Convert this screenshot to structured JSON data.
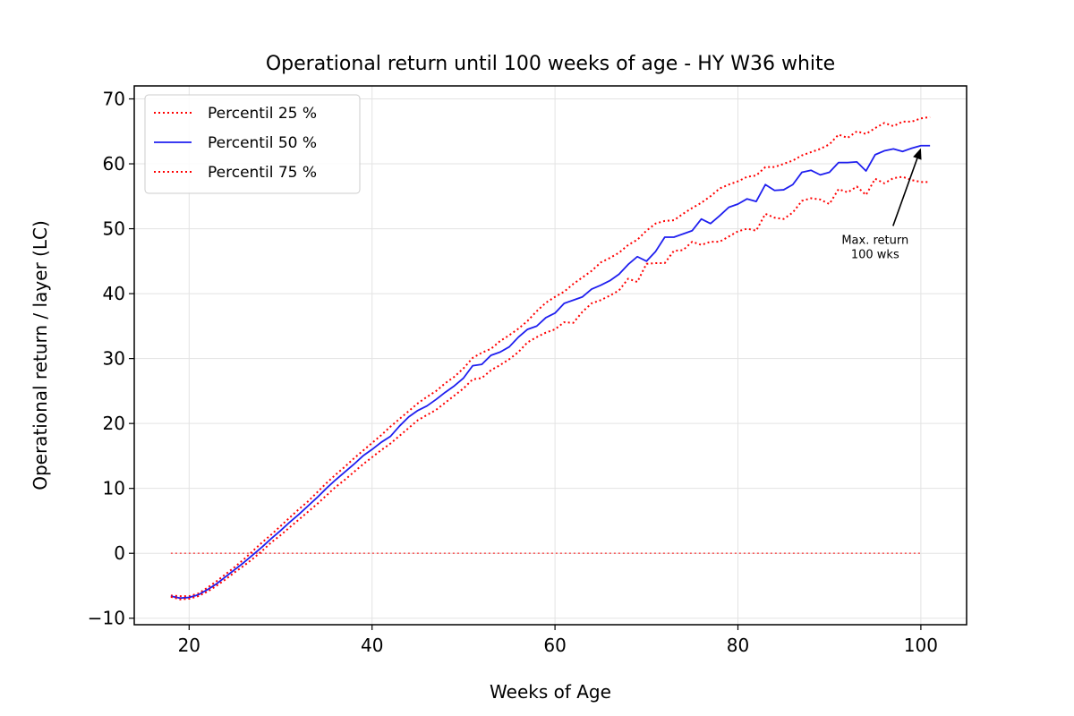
{
  "chart_data": {
    "type": "line",
    "title": "Operational return until 100 weeks of age - HY W36  white",
    "xlabel": "Weeks of Age",
    "ylabel": "Operational return / layer (LC)",
    "xlim": [
      14,
      105
    ],
    "ylim": [
      -11,
      72
    ],
    "xticks": [
      20,
      40,
      60,
      80,
      100
    ],
    "yticks": [
      -10,
      0,
      10,
      20,
      30,
      40,
      50,
      60,
      70
    ],
    "xtick_labels": [
      "20",
      "40",
      "60",
      "80",
      "100"
    ],
    "ytick_labels": [
      "−10",
      "0",
      "10",
      "20",
      "30",
      "40",
      "50",
      "60",
      "70"
    ],
    "grid": true,
    "legend_position": "upper-left",
    "x": [
      18,
      19,
      20,
      21,
      22,
      23,
      24,
      25,
      26,
      27,
      28,
      29,
      30,
      31,
      32,
      33,
      34,
      35,
      36,
      37,
      38,
      39,
      40,
      41,
      42,
      43,
      44,
      45,
      46,
      47,
      48,
      49,
      50,
      51,
      52,
      53,
      54,
      55,
      56,
      57,
      58,
      59,
      60,
      61,
      62,
      63,
      64,
      65,
      66,
      67,
      68,
      69,
      70,
      71,
      72,
      73,
      74,
      75,
      76,
      77,
      78,
      79,
      80,
      81,
      82,
      83,
      84,
      85,
      86,
      87,
      88,
      89,
      90,
      91,
      92,
      93,
      94,
      95,
      96,
      97,
      98,
      99,
      100,
      101
    ],
    "series": [
      {
        "name": "Percentil 25 %",
        "color": "#ff0000",
        "style": "dotted",
        "values": [
          -6.5,
          -6.6,
          -6.6,
          -6.2,
          -5.3,
          -4.3,
          -3.2,
          -2.1,
          -0.9,
          0.4,
          1.7,
          2.9,
          4.2,
          5.5,
          6.8,
          8.0,
          9.4,
          10.8,
          12.1,
          13.3,
          14.6,
          15.8,
          17.0,
          18.2,
          19.5,
          20.7,
          21.9,
          23.1,
          24.1,
          25.0,
          26.2,
          27.2,
          28.5,
          30.1,
          30.9,
          31.5,
          32.7,
          33.6,
          34.6,
          35.8,
          37.3,
          38.6,
          39.5,
          40.3,
          41.5,
          42.5,
          43.5,
          44.8,
          45.5,
          46.3,
          47.5,
          48.3,
          49.7,
          50.8,
          51.2,
          51.3,
          52.3,
          53.2,
          54.0,
          55.0,
          56.2,
          56.8,
          57.3,
          58.0,
          58.2,
          59.5,
          59.5,
          60.0,
          60.5,
          61.3,
          61.8,
          62.3,
          63.0,
          64.5,
          64.0,
          65.0,
          64.6,
          65.5,
          66.3,
          65.8,
          66.5,
          66.5,
          67.0,
          67.2
        ]
      },
      {
        "name": "Percentil 50 %",
        "color": "#1f1fef",
        "style": "solid",
        "values": [
          -6.6,
          -6.9,
          -6.8,
          -6.4,
          -5.6,
          -4.7,
          -3.6,
          -2.5,
          -1.4,
          -0.2,
          1.0,
          2.3,
          3.5,
          4.8,
          6.0,
          7.3,
          8.6,
          10.0,
          11.3,
          12.5,
          13.7,
          15.0,
          16.0,
          17.1,
          18.0,
          19.6,
          21.0,
          22.0,
          22.7,
          23.7,
          24.8,
          25.8,
          27.0,
          28.9,
          29.1,
          30.5,
          31.0,
          31.8,
          33.3,
          34.5,
          35.0,
          36.3,
          37.0,
          38.5,
          39.0,
          39.5,
          40.7,
          41.3,
          42.0,
          43.0,
          44.5,
          45.7,
          45.0,
          46.5,
          48.7,
          48.7,
          49.2,
          49.7,
          51.5,
          50.8,
          52.0,
          53.3,
          53.8,
          54.6,
          54.2,
          56.8,
          55.9,
          56.0,
          56.8,
          58.7,
          59.0,
          58.3,
          58.7,
          60.2,
          60.2,
          60.3,
          58.9,
          61.4,
          62.0,
          62.3,
          61.9,
          62.4,
          62.8,
          62.8
        ]
      },
      {
        "name": "Percentil 75 %",
        "color": "#ff0000",
        "style": "dotted",
        "values": [
          -6.7,
          -7.1,
          -7.0,
          -6.6,
          -5.9,
          -5.0,
          -4.0,
          -2.9,
          -1.9,
          -0.8,
          0.4,
          1.7,
          2.8,
          4.0,
          5.2,
          6.4,
          7.6,
          8.9,
          10.2,
          11.3,
          12.5,
          13.7,
          14.8,
          15.9,
          16.9,
          18.1,
          19.3,
          20.5,
          21.3,
          22.1,
          23.2,
          24.3,
          25.4,
          26.8,
          27.0,
          28.2,
          29.0,
          29.9,
          31.0,
          32.5,
          33.3,
          34.0,
          34.5,
          35.6,
          35.5,
          37.2,
          38.5,
          39.0,
          39.7,
          40.5,
          42.3,
          41.8,
          44.6,
          44.7,
          44.7,
          46.6,
          46.7,
          48.0,
          47.5,
          48.0,
          48.0,
          48.8,
          49.6,
          50.0,
          49.7,
          52.3,
          51.7,
          51.5,
          52.5,
          54.3,
          54.7,
          54.5,
          53.8,
          56.1,
          55.6,
          56.5,
          55.2,
          57.7,
          57.0,
          57.8,
          58.0,
          57.5,
          57.2,
          57.2
        ]
      }
    ],
    "reference_line": {
      "y": 0,
      "x_range": [
        18,
        100
      ],
      "color": "#ff0000",
      "style": "dotted"
    },
    "annotation": {
      "text_lines": [
        "Max. return",
        "100 wks"
      ],
      "text_at": [
        95,
        48.5
      ],
      "arrow_to": [
        100,
        62.4
      ]
    }
  }
}
